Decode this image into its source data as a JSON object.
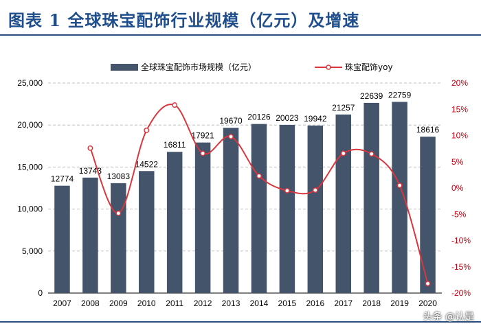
{
  "header": {
    "title": "图表 1 全球珠宝配饰行业规模（亿元）及增速"
  },
  "watermark": "头条 @认是",
  "chart_data": {
    "type": "bar",
    "categories": [
      "2007",
      "2008",
      "2009",
      "2010",
      "2011",
      "2012",
      "2013",
      "2014",
      "2015",
      "2016",
      "2017",
      "2018",
      "2019",
      "2020"
    ],
    "series": [
      {
        "name": "全球珠宝配饰市场规模（亿元）",
        "type": "bar",
        "axis": "left",
        "color": "#44546a",
        "values": [
          12774,
          13743,
          13083,
          14522,
          16811,
          17921,
          19670,
          20126,
          20023,
          19942,
          21257,
          22639,
          22759,
          18616
        ],
        "labels": [
          "12774",
          "13743",
          "13083",
          "14522",
          "16811",
          "17921",
          "19670",
          "20126",
          "20023",
          "19942",
          "21257",
          "22639",
          "22759",
          "18616"
        ]
      },
      {
        "name": "珠宝配饰yoy",
        "type": "line",
        "axis": "right",
        "color": "#d9363e",
        "values_percent": [
          null,
          7.6,
          -4.8,
          11.0,
          15.8,
          6.6,
          9.8,
          2.3,
          -0.5,
          -0.4,
          6.6,
          6.5,
          0.5,
          -18.2
        ]
      }
    ],
    "yleft": {
      "lim": [
        0,
        25000
      ],
      "ticks": [
        "0",
        "5,000",
        "10,000",
        "15,000",
        "20,000",
        "25,000"
      ]
    },
    "yright": {
      "lim": [
        -20,
        20
      ],
      "ticks": [
        "-20%",
        "-15%",
        "-10%",
        "-5%",
        "0%",
        "5%",
        "10%",
        "15%",
        "20%"
      ]
    },
    "grid": true,
    "legend": "top"
  }
}
